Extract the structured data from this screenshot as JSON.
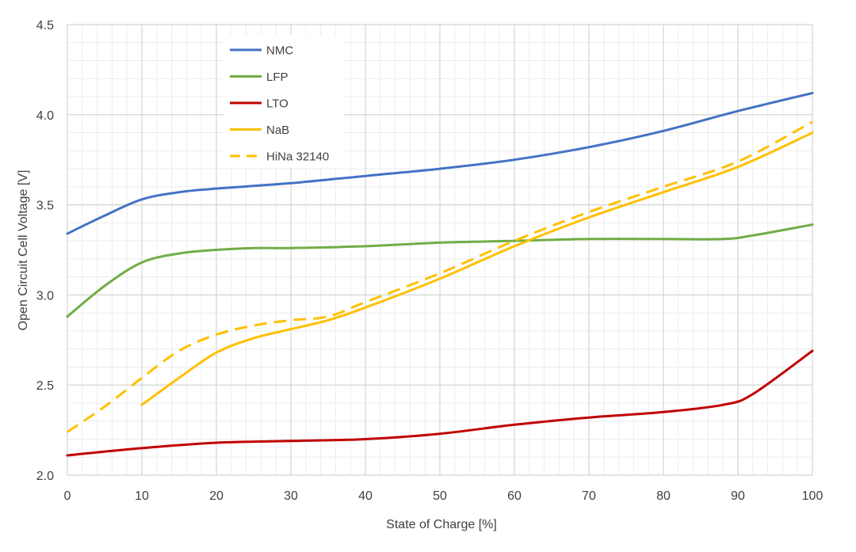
{
  "chart_data": {
    "type": "line",
    "title": "",
    "xlabel": "State of Charge [%]",
    "ylabel": "Open Circuit Cell Voltage [V]",
    "xlim": [
      0,
      100
    ],
    "ylim": [
      2.0,
      4.5
    ],
    "xticks": [
      0,
      10,
      20,
      30,
      40,
      50,
      60,
      70,
      80,
      90,
      100
    ],
    "xtick_labels": [
      "0",
      "10",
      "20",
      "30",
      "40",
      "50",
      "60",
      "70",
      "80",
      "90",
      "100"
    ],
    "yticks": [
      2.0,
      2.5,
      3.0,
      3.5,
      4.0,
      4.5
    ],
    "ytick_labels": [
      "2.0",
      "2.5",
      "3.0",
      "3.5",
      "4.0",
      "4.5"
    ],
    "grid": true,
    "legend_position": "top-left",
    "series": [
      {
        "name": "NMC",
        "color": "#4472c4",
        "dash": false,
        "x": [
          0,
          5,
          10,
          15,
          20,
          30,
          40,
          50,
          60,
          70,
          80,
          90,
          100
        ],
        "y": [
          3.34,
          3.44,
          3.53,
          3.57,
          3.59,
          3.62,
          3.66,
          3.7,
          3.75,
          3.82,
          3.91,
          4.02,
          4.12
        ]
      },
      {
        "name": "LFP",
        "color": "#70ad47",
        "dash": false,
        "x": [
          0,
          5,
          10,
          15,
          20,
          25,
          30,
          40,
          50,
          60,
          70,
          80,
          88,
          92,
          100
        ],
        "y": [
          2.88,
          3.05,
          3.18,
          3.23,
          3.25,
          3.26,
          3.26,
          3.27,
          3.29,
          3.3,
          3.31,
          3.31,
          3.31,
          3.33,
          3.39
        ]
      },
      {
        "name": "LTO",
        "color": "#c00000",
        "dash": false,
        "x": [
          0,
          10,
          20,
          30,
          40,
          50,
          60,
          70,
          80,
          88,
          92,
          100
        ],
        "y": [
          2.11,
          2.15,
          2.18,
          2.19,
          2.2,
          2.23,
          2.28,
          2.32,
          2.35,
          2.39,
          2.45,
          2.69
        ]
      },
      {
        "name": "NaB",
        "color": "#ffc000",
        "dash": false,
        "x": [
          10,
          15,
          20,
          25,
          30,
          35,
          40,
          50,
          60,
          70,
          80,
          90,
          100
        ],
        "y": [
          2.39,
          2.54,
          2.68,
          2.76,
          2.81,
          2.86,
          2.93,
          3.09,
          3.27,
          3.43,
          3.57,
          3.71,
          3.9
        ]
      },
      {
        "name": "HiNa 32140",
        "color": "#ffc000",
        "dash": true,
        "x": [
          0,
          5,
          10,
          15,
          20,
          25,
          30,
          35,
          40,
          50,
          60,
          70,
          80,
          90,
          100
        ],
        "y": [
          2.24,
          2.38,
          2.54,
          2.69,
          2.78,
          2.83,
          2.86,
          2.88,
          2.96,
          3.12,
          3.3,
          3.46,
          3.6,
          3.74,
          3.96
        ]
      }
    ]
  }
}
